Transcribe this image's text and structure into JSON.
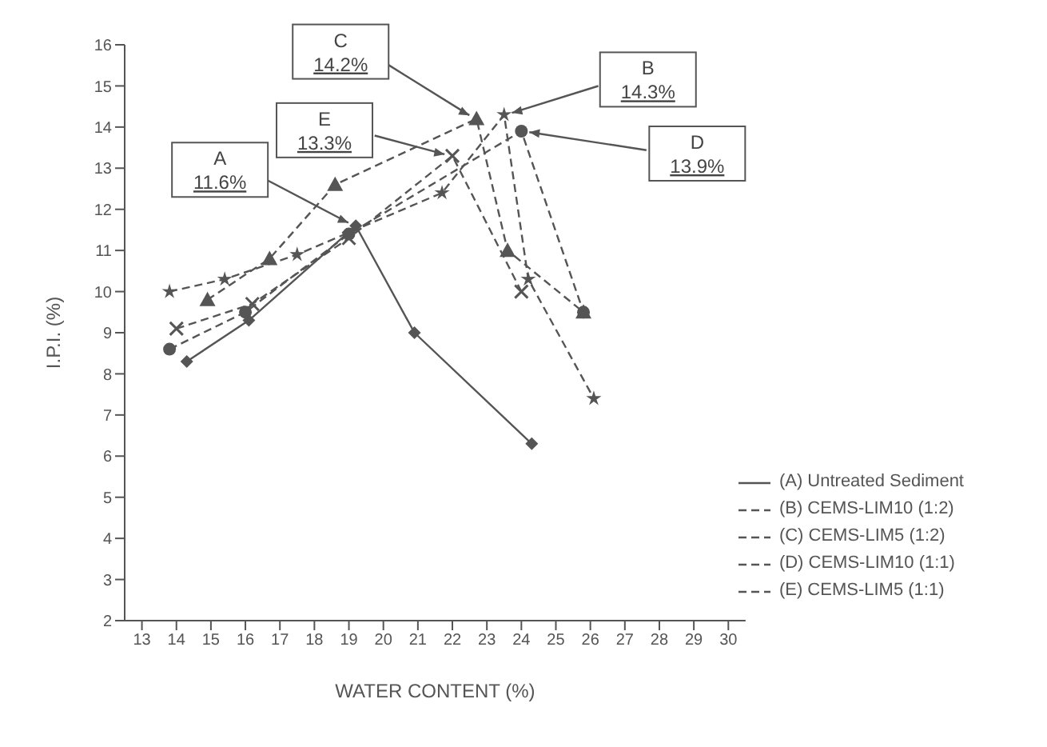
{
  "chart_data": {
    "type": "line",
    "xlabel": "WATER CONTENT (%)",
    "ylabel": "I.P.I. (%)",
    "xlim": [
      12.5,
      30.5
    ],
    "xticks": [
      13,
      14,
      15,
      16,
      17,
      18,
      19,
      20,
      21,
      22,
      23,
      24,
      25,
      26,
      27,
      28,
      29,
      30
    ],
    "ylim": [
      2,
      16
    ],
    "yticks": [
      2,
      3,
      4,
      5,
      6,
      7,
      8,
      9,
      10,
      11,
      12,
      13,
      14,
      15,
      16
    ],
    "grid": false,
    "legend": "bottom right",
    "line_style": "dashed",
    "series": [
      {
        "name": "(A) Untreated Sediment",
        "color": "#555555",
        "marker": "diamond",
        "line_style": "solid",
        "x": [
          14.3,
          16.1,
          19.2,
          20.9,
          24.3
        ],
        "values": [
          8.3,
          9.3,
          11.6,
          9.0,
          6.3
        ]
      },
      {
        "name": "(B) CEMS-LIM10 (1:2)",
        "color": "#555555",
        "marker": "star",
        "x": [
          13.8,
          15.4,
          17.5,
          21.7,
          23.5,
          24.2,
          26.1
        ],
        "values": [
          10.0,
          10.3,
          10.9,
          12.4,
          14.3,
          10.3,
          7.4
        ]
      },
      {
        "name": "(C) CEMS-LIM5 (1:2)",
        "color": "#555555",
        "marker": "triangle",
        "x": [
          14.9,
          16.7,
          18.6,
          22.7,
          23.6,
          25.8
        ],
        "values": [
          9.8,
          10.8,
          12.6,
          14.2,
          11.0,
          9.5
        ]
      },
      {
        "name": "(D) CEMS-LIM10 (1:1)",
        "color": "#555555",
        "marker": "circle",
        "x": [
          13.8,
          16.0,
          19.0,
          24.0,
          25.8
        ],
        "values": [
          8.6,
          9.5,
          11.4,
          13.9,
          9.5
        ]
      },
      {
        "name": "(E) CEMS-LIM5 (1:1)",
        "color": "#555555",
        "marker": "cross",
        "x": [
          14.0,
          16.2,
          19.0,
          22.0,
          24.0
        ],
        "values": [
          9.1,
          9.7,
          11.3,
          13.3,
          10.0
        ]
      }
    ],
    "annotations": [
      {
        "text": "A 11.6%",
        "x": 19.2,
        "y": 11.6
      },
      {
        "text": "E 13.3%",
        "x": 22.0,
        "y": 13.3
      },
      {
        "text": "C 14.2%",
        "x": 22.7,
        "y": 14.2
      },
      {
        "text": "B 14.3%",
        "x": 23.5,
        "y": 14.3
      },
      {
        "text": "D 13.9%",
        "x": 24.0,
        "y": 13.9
      }
    ]
  }
}
